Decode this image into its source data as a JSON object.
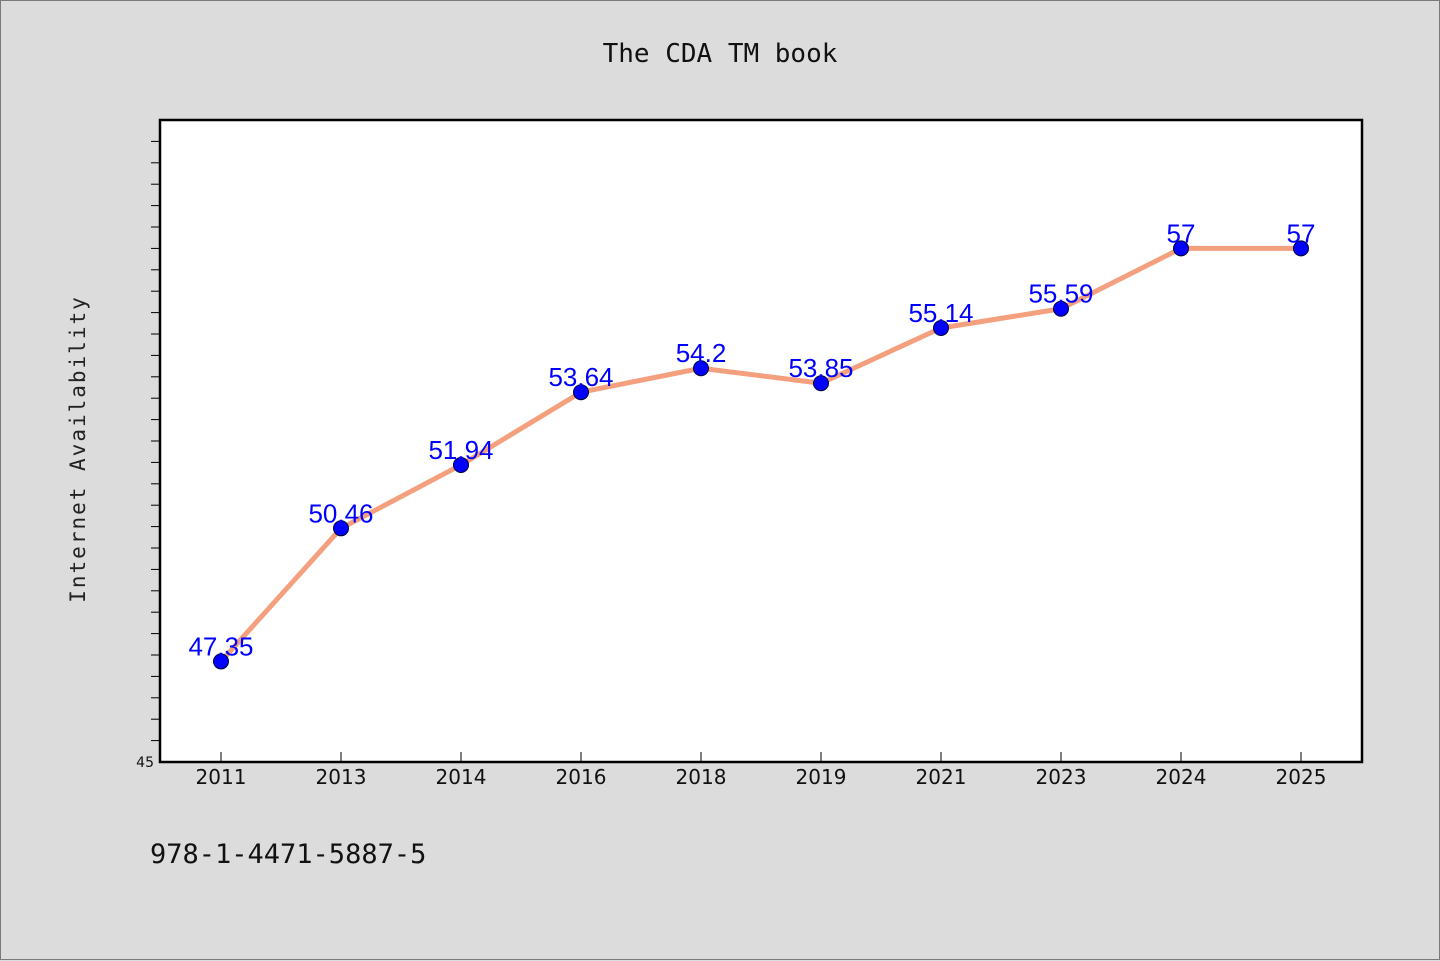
{
  "chart_data": {
    "type": "line",
    "title": "The CDA TM book",
    "xlabel": "",
    "ylabel": "Internet Availability",
    "categories": [
      "2011",
      "2013",
      "2014",
      "2016",
      "2018",
      "2019",
      "2021",
      "2023",
      "2024",
      "2025"
    ],
    "series": [
      {
        "values": [
          47.35,
          50.46,
          51.94,
          53.64,
          54.2,
          53.85,
          55.14,
          55.59,
          57,
          57
        ]
      }
    ],
    "data_labels": [
      "47.35",
      "50.46",
      "51.94",
      "53.64",
      "54.2",
      "53.85",
      "55.14",
      "55.59",
      "57",
      "57"
    ],
    "ylim": [
      45,
      60
    ],
    "y_min_label": "45",
    "grid": false,
    "legend": "none",
    "line_color": "#f4a07e",
    "marker_color": "#0000ff",
    "label_color": "#0000ff"
  },
  "footer": {
    "isbn": "978-1-4471-5887-5"
  }
}
